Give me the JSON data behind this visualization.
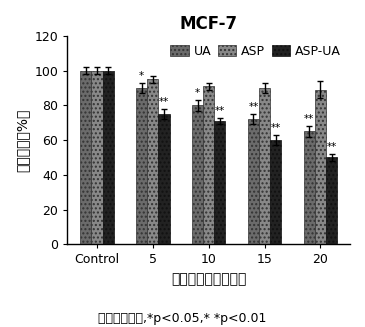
{
  "title": "MCF-7",
  "xlabel": "药物浓度（微摩尔）",
  "ylabel": "粘附细耦（%）",
  "footnote": "同对照组相比,*p<0.05,* *p<0.01",
  "categories": [
    "Control",
    "5",
    "10",
    "15",
    "20"
  ],
  "series": {
    "UA": {
      "values": [
        100,
        90,
        80,
        72,
        65
      ],
      "errors": [
        2,
        3,
        3,
        3,
        3
      ],
      "color": "#6b6b6b",
      "hatch": "....",
      "edgecolor": "#333333"
    },
    "ASP": {
      "values": [
        100,
        95,
        91,
        90,
        89
      ],
      "errors": [
        2,
        2,
        2,
        3,
        5
      ],
      "color": "#888888",
      "hatch": "....",
      "edgecolor": "#333333"
    },
    "ASP-UA": {
      "values": [
        100,
        75,
        71,
        60,
        50
      ],
      "errors": [
        2,
        3,
        2,
        3,
        2
      ],
      "color": "#222222",
      "hatch": "....",
      "edgecolor": "#111111"
    }
  },
  "annotations": {
    "UA": {
      "5": "*",
      "10": "*",
      "15": "**",
      "20": "**"
    },
    "ASP": {
      "5": "",
      "10": "",
      "15": "",
      "20": ""
    },
    "ASP-UA": {
      "5": "**",
      "10": "**",
      "15": "**",
      "20": "**"
    }
  },
  "ylim": [
    0,
    120
  ],
  "yticks": [
    0,
    20,
    40,
    60,
    80,
    100,
    120
  ],
  "bar_width": 0.2,
  "title_fontsize": 12,
  "axis_label_fontsize": 10,
  "tick_fontsize": 9,
  "legend_fontsize": 9,
  "footnote_fontsize": 9,
  "background_color": "#ffffff"
}
